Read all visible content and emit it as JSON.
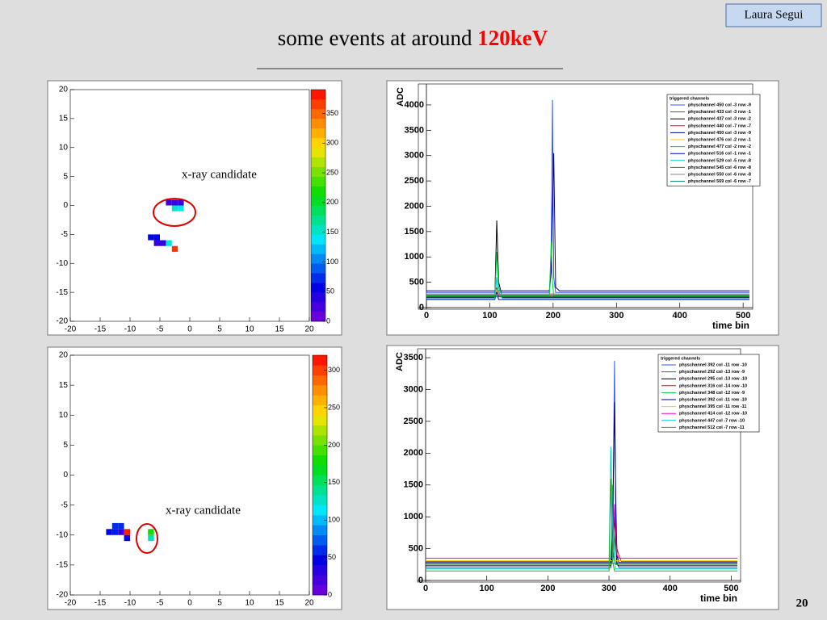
{
  "header": {
    "author": "Laura Segui",
    "title_prefix": "some events at around ",
    "title_highlight": "120keV",
    "page_number": "20"
  },
  "chart_data": [
    {
      "type": "heatmap",
      "annotation": "x-ray candidate",
      "xlim": [
        -20,
        20
      ],
      "ylim": [
        -20,
        20
      ],
      "xticks": [
        -20,
        -15,
        -10,
        -5,
        0,
        5,
        10,
        15,
        20
      ],
      "yticks": [
        -20,
        -15,
        -10,
        -5,
        0,
        5,
        10,
        15,
        20
      ],
      "zlim": [
        0,
        390
      ],
      "zticks": [
        0,
        50,
        100,
        150,
        200,
        250,
        300,
        350
      ],
      "cells": [
        {
          "x": -4,
          "y": 0,
          "value": 30
        },
        {
          "x": -3,
          "y": 0,
          "value": 30
        },
        {
          "x": -2,
          "y": 0,
          "value": 35
        },
        {
          "x": -3,
          "y": -1,
          "value": 150
        },
        {
          "x": -2,
          "y": -1,
          "value": 140
        },
        {
          "x": -7,
          "y": -6,
          "value": 60
        },
        {
          "x": -6,
          "y": -6,
          "value": 60
        },
        {
          "x": -6,
          "y": -7,
          "value": 35
        },
        {
          "x": -5,
          "y": -7,
          "value": 35
        },
        {
          "x": -4,
          "y": -7,
          "value": 150
        },
        {
          "x": -3,
          "y": -8,
          "value": 370
        }
      ]
    },
    {
      "type": "heatmap",
      "annotation": "x-ray candidate",
      "xlim": [
        -20,
        20
      ],
      "ylim": [
        -20,
        20
      ],
      "xticks": [
        -20,
        -15,
        -10,
        -5,
        0,
        5,
        10,
        15,
        20
      ],
      "yticks": [
        -20,
        -15,
        -10,
        -5,
        0,
        5,
        10,
        15,
        20
      ],
      "zlim": [
        0,
        320
      ],
      "zticks": [
        0,
        50,
        100,
        150,
        200,
        250,
        300
      ],
      "cells": [
        {
          "x": -14,
          "y": -10,
          "value": 50
        },
        {
          "x": -13,
          "y": -10,
          "value": 55
        },
        {
          "x": -13,
          "y": -9,
          "value": 60
        },
        {
          "x": -12,
          "y": -9,
          "value": 60
        },
        {
          "x": -12,
          "y": -10,
          "value": 30
        },
        {
          "x": -11,
          "y": -10,
          "value": 310
        },
        {
          "x": -11,
          "y": -11,
          "value": 45
        },
        {
          "x": -7,
          "y": -10,
          "value": 180
        },
        {
          "x": -7,
          "y": -11,
          "value": 130
        }
      ]
    },
    {
      "type": "line",
      "xlabel": "time bin",
      "ylabel": "ADC",
      "legend_title": "triggered channels",
      "xlim": [
        0,
        510
      ],
      "ylim": [
        0,
        4350
      ],
      "xticks": [
        0,
        100,
        200,
        300,
        400,
        500
      ],
      "yticks": [
        0,
        500,
        1000,
        1500,
        2000,
        2500,
        3000,
        3500,
        4000
      ],
      "x": [
        0,
        108,
        111,
        114,
        120,
        194,
        197,
        199,
        201,
        204,
        210,
        510
      ],
      "series": [
        {
          "name": "physchannel 450 col -3 row -9",
          "color": "#3355ff",
          "values": [
            300,
            300,
            300,
            300,
            300,
            300,
            1000,
            4100,
            600,
            300,
            300,
            300
          ]
        },
        {
          "name": "physchannel 433 col -3 row -1",
          "color": "#555555",
          "values": [
            250,
            250,
            400,
            250,
            250,
            250,
            250,
            250,
            250,
            250,
            250,
            250
          ]
        },
        {
          "name": "physchannel 437 col -3 row -2",
          "color": "#000000",
          "values": [
            200,
            200,
            1720,
            500,
            200,
            200,
            200,
            200,
            200,
            200,
            200,
            200
          ]
        },
        {
          "name": "physchannel 440 col -7 row -7",
          "color": "#ff0000",
          "values": [
            220,
            220,
            300,
            220,
            220,
            220,
            220,
            220,
            220,
            220,
            220,
            220
          ]
        },
        {
          "name": "physchannel 450 col -3 row -9",
          "color": "#000088",
          "values": [
            330,
            330,
            330,
            330,
            330,
            330,
            700,
            2000,
            3050,
            400,
            330,
            330
          ]
        },
        {
          "name": "physchannel 476 col -2 row -1",
          "color": "#ffcc00",
          "values": [
            280,
            280,
            350,
            280,
            280,
            280,
            280,
            280,
            280,
            280,
            280,
            280
          ]
        },
        {
          "name": "physchannel 477 col -2 row -2",
          "color": "#00cc44",
          "values": [
            230,
            230,
            1100,
            400,
            230,
            230,
            1300,
            500,
            230,
            230,
            230,
            230
          ]
        },
        {
          "name": "physchannel 516 col -1 row -1",
          "color": "#0000cc",
          "values": [
            160,
            160,
            300,
            160,
            160,
            160,
            160,
            160,
            160,
            160,
            160,
            160
          ]
        },
        {
          "name": "physchannel 529 col -5 row -8",
          "color": "#00cccc",
          "values": [
            180,
            180,
            600,
            300,
            180,
            180,
            180,
            180,
            180,
            180,
            180,
            180
          ]
        },
        {
          "name": "physchannel 545 col -6 row -8",
          "color": "#228822",
          "values": [
            240,
            240,
            240,
            240,
            240,
            240,
            240,
            240,
            240,
            240,
            240,
            240
          ]
        },
        {
          "name": "physchannel 550 col -6 row -8",
          "color": "#888888",
          "values": [
            260,
            260,
            260,
            260,
            260,
            260,
            260,
            260,
            260,
            260,
            260,
            260
          ]
        },
        {
          "name": "physchannel 569 col -6 row -7",
          "color": "#007777",
          "values": [
            210,
            210,
            210,
            210,
            210,
            210,
            210,
            210,
            210,
            210,
            210,
            210
          ]
        }
      ]
    },
    {
      "type": "line",
      "xlabel": "time bin",
      "ylabel": "ADC",
      "legend_title": "triggered channels",
      "xlim": [
        0,
        510
      ],
      "ylim": [
        0,
        3590
      ],
      "xticks": [
        0,
        100,
        200,
        300,
        400,
        500
      ],
      "yticks": [
        0,
        500,
        1000,
        1500,
        2000,
        2500,
        3000,
        3500
      ],
      "x": [
        0,
        300,
        303,
        306,
        309,
        311,
        313,
        316,
        320,
        510
      ],
      "series": [
        {
          "name": "physchannel 392 col -11 row -10",
          "color": "#3355ff",
          "values": [
            200,
            200,
            200,
            600,
            3450,
            900,
            300,
            200,
            200,
            200
          ]
        },
        {
          "name": "physchannel 292 col -13 row -9",
          "color": "#555555",
          "values": [
            270,
            270,
            270,
            270,
            270,
            270,
            270,
            270,
            270,
            270
          ]
        },
        {
          "name": "physchannel 295 col -13 row -10",
          "color": "#000000",
          "values": [
            230,
            230,
            230,
            400,
            1000,
            600,
            250,
            230,
            230,
            230
          ]
        },
        {
          "name": "physchannel 316 col -14 row -10",
          "color": "#ff0000",
          "values": [
            300,
            300,
            300,
            300,
            500,
            900,
            500,
            400,
            300,
            300
          ]
        },
        {
          "name": "physchannel 348 col -12 row -9",
          "color": "#00cc44",
          "values": [
            250,
            250,
            250,
            1500,
            400,
            250,
            250,
            250,
            250,
            250
          ]
        },
        {
          "name": "physchannel 392 col -11 row -10",
          "color": "#000088",
          "values": [
            280,
            280,
            280,
            800,
            2800,
            1300,
            400,
            280,
            280,
            280
          ]
        },
        {
          "name": "physchannel 395 col -11 row -11",
          "color": "#ffcc00",
          "values": [
            310,
            310,
            310,
            310,
            310,
            310,
            310,
            310,
            310,
            310
          ]
        },
        {
          "name": "physchannel 414 col -12 row -10",
          "color": "#ff00cc",
          "values": [
            350,
            350,
            350,
            350,
            1200,
            700,
            400,
            350,
            350,
            350
          ]
        },
        {
          "name": "physchannel 447 col -7 row -10",
          "color": "#00cccc",
          "values": [
            180,
            180,
            2100,
            900,
            300,
            180,
            180,
            180,
            180,
            180
          ]
        },
        {
          "name": "physchannel 512 col -7 row -11",
          "color": "#22aa22",
          "values": [
            150,
            150,
            1600,
            300,
            150,
            150,
            150,
            150,
            150,
            150
          ]
        }
      ]
    }
  ]
}
